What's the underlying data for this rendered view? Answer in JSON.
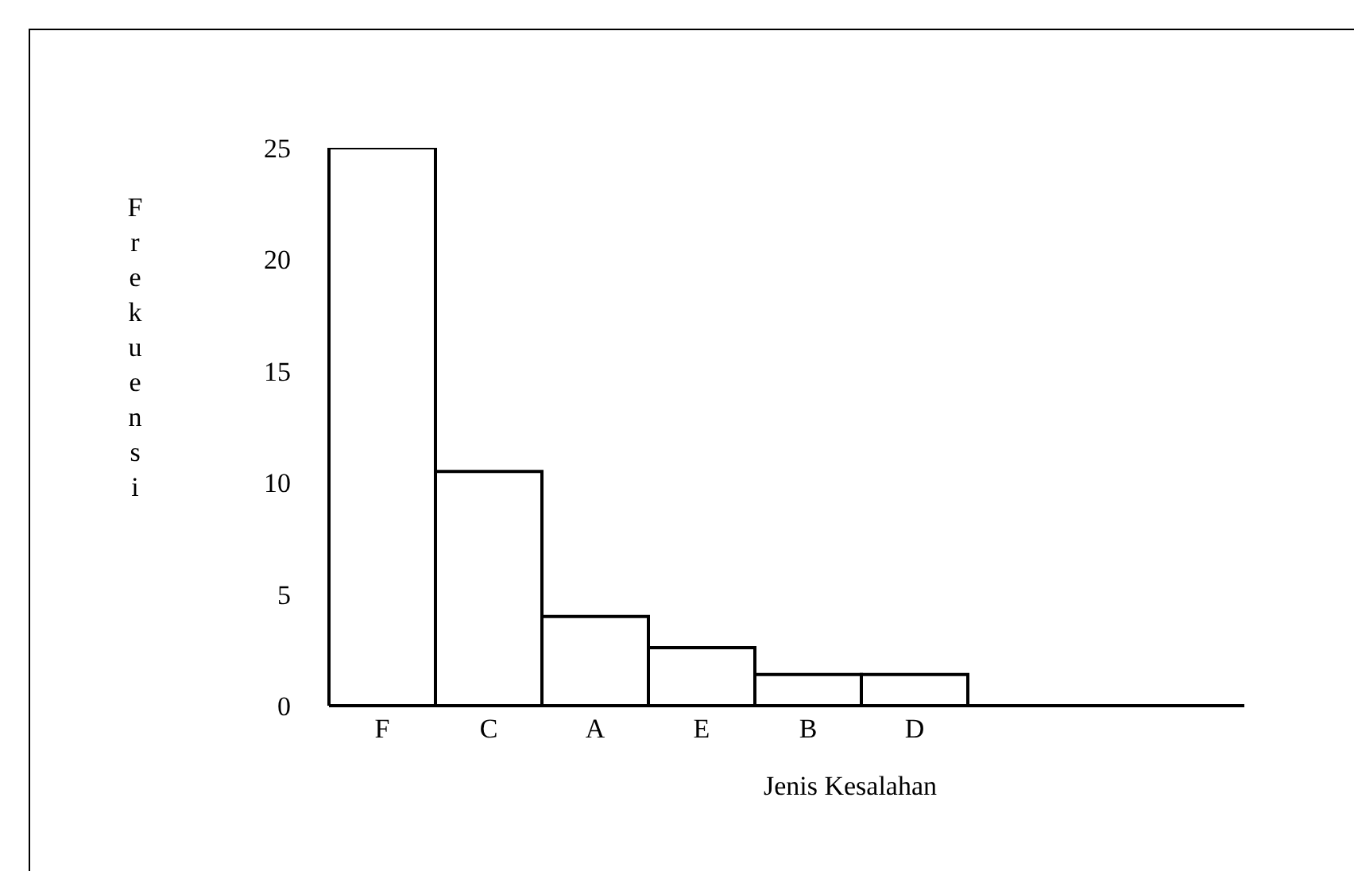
{
  "chart_data": {
    "type": "bar",
    "xlabel": "Jenis Kesalahan",
    "ylabel": "Frekuensi",
    "categories": [
      "F",
      "C",
      "A",
      "E",
      "B",
      "D"
    ],
    "values": [
      25,
      10.5,
      4,
      2.6,
      1.4,
      1.4
    ],
    "color": "#ffffff",
    "ylim": [
      0,
      25
    ],
    "yticks": [
      0,
      5,
      10,
      15,
      20,
      25
    ],
    "grid": false,
    "legend": false
  }
}
